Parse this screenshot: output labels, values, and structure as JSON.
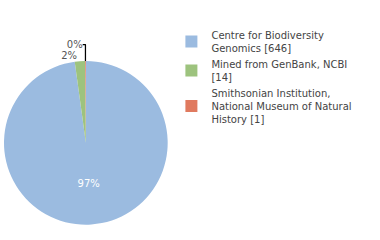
{
  "chart_data": {
    "type": "pie",
    "categories": [
      "Centre for Biodiversity Genomics [646]",
      "Mined from GenBank, NCBI [14]",
      "Smithsonian Institution, National Museum of Natural History [1]"
    ],
    "values": [
      97,
      2,
      0.15
    ],
    "value_labels": [
      "97%",
      "2%",
      "0%"
    ],
    "data_labels": true,
    "colors": [
      "#9bbbe0",
      "#9dc37e",
      "#e07a5f"
    ],
    "legend": "top right"
  }
}
